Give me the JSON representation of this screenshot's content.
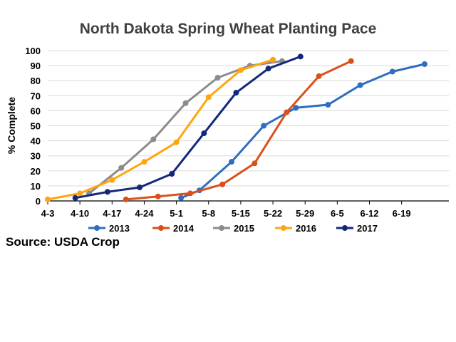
{
  "chart_data": {
    "type": "line",
    "title": "North Dakota Spring Wheat Planting Pace",
    "ylabel": "% Complete",
    "xlabel": "",
    "x_ticks": [
      "4-3",
      "4-10",
      "4-17",
      "4-24",
      "5-1",
      "5-8",
      "5-15",
      "5-22",
      "5-29",
      "6-5",
      "6-12",
      "6-19"
    ],
    "y_ticks": [
      "0",
      "10",
      "20",
      "30",
      "40",
      "50",
      "60",
      "70",
      "80",
      "90",
      "100"
    ],
    "ylim": [
      0,
      100
    ],
    "grid": "horizontal",
    "legend_position": "bottom",
    "series": [
      {
        "name": "2013",
        "color": "#2E6EC0",
        "points": [
          {
            "x": "5-2",
            "y": 2
          },
          {
            "x": "5-6",
            "y": 7
          },
          {
            "x": "5-13",
            "y": 26
          },
          {
            "x": "5-20",
            "y": 50
          },
          {
            "x": "5-27",
            "y": 62
          },
          {
            "x": "6-3",
            "y": 64
          },
          {
            "x": "6-10",
            "y": 77
          },
          {
            "x": "6-17",
            "y": 86
          },
          {
            "x": "6-24",
            "y": 91
          }
        ]
      },
      {
        "name": "2014",
        "color": "#D9501C",
        "points": [
          {
            "x": "4-20",
            "y": 1
          },
          {
            "x": "4-27",
            "y": 3
          },
          {
            "x": "5-4",
            "y": 5
          },
          {
            "x": "5-11",
            "y": 11
          },
          {
            "x": "5-18",
            "y": 25
          },
          {
            "x": "5-25",
            "y": 59
          },
          {
            "x": "6-1",
            "y": 83
          },
          {
            "x": "6-8",
            "y": 93
          }
        ]
      },
      {
        "name": "2015",
        "color": "#8C8C8C",
        "points": [
          {
            "x": "4-12",
            "y": 5
          },
          {
            "x": "4-19",
            "y": 22
          },
          {
            "x": "4-26",
            "y": 41
          },
          {
            "x": "5-3",
            "y": 65
          },
          {
            "x": "5-10",
            "y": 82
          },
          {
            "x": "5-17",
            "y": 90
          },
          {
            "x": "5-24",
            "y": 93
          }
        ]
      },
      {
        "name": "2016",
        "color": "#FFA510",
        "points": [
          {
            "x": "4-3",
            "y": 1
          },
          {
            "x": "4-10",
            "y": 5
          },
          {
            "x": "4-17",
            "y": 14
          },
          {
            "x": "4-24",
            "y": 26
          },
          {
            "x": "5-1",
            "y": 39
          },
          {
            "x": "5-8",
            "y": 69
          },
          {
            "x": "5-15",
            "y": 87
          },
          {
            "x": "5-22",
            "y": 94
          }
        ]
      },
      {
        "name": "2017",
        "color": "#13287A",
        "points": [
          {
            "x": "4-9",
            "y": 2
          },
          {
            "x": "4-16",
            "y": 6
          },
          {
            "x": "4-23",
            "y": 9
          },
          {
            "x": "4-30",
            "y": 18
          },
          {
            "x": "5-7",
            "y": 45
          },
          {
            "x": "5-14",
            "y": 72
          },
          {
            "x": "5-21",
            "y": 88
          },
          {
            "x": "5-28",
            "y": 96
          }
        ]
      }
    ]
  },
  "source": "Source: USDA Crop"
}
